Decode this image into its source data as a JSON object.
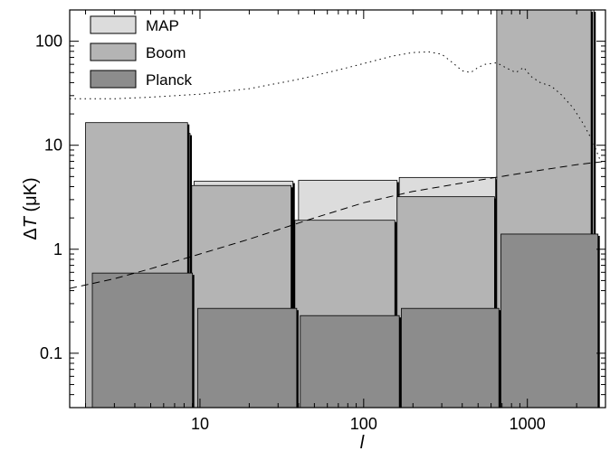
{
  "chart_data": {
    "type": "bar",
    "xscale": "log",
    "yscale": "log",
    "xlim": [
      1.6,
      3000
    ],
    "ylim": [
      0.03,
      200
    ],
    "xlabel": "l",
    "ylabel": "ΔT (μK)",
    "ylabel_parts": {
      "delta": "Δ",
      "var": "T",
      "unit": " (μK)"
    },
    "grid": false,
    "legend_position": "top-left",
    "x_ticks": [
      {
        "value": 10,
        "label": "10"
      },
      {
        "value": 100,
        "label": "100"
      },
      {
        "value": 1000,
        "label": "1000"
      }
    ],
    "y_ticks": [
      {
        "value": 0.1,
        "label": "0.1"
      },
      {
        "value": 1,
        "label": "1"
      },
      {
        "value": 10,
        "label": "10"
      },
      {
        "value": 100,
        "label": "100"
      }
    ],
    "band_edges_l": [
      2,
      9,
      38,
      160,
      650,
      2600
    ],
    "series": [
      {
        "name": "MAP",
        "color": "#dcdcdc",
        "bands": [
          {
            "l_min": 2.1,
            "l_max": 8.7,
            "value": 13
          },
          {
            "l_min": 9.2,
            "l_max": 37,
            "value": 4.5
          },
          {
            "l_min": 40,
            "l_max": 160,
            "value": 4.6
          },
          {
            "l_min": 165,
            "l_max": 640,
            "value": 4.9
          },
          {
            "l_min": 660,
            "l_max": 2550,
            "value": 200
          }
        ]
      },
      {
        "name": "Boom",
        "color": "#b4b4b4",
        "bands": [
          {
            "l_min": 2.0,
            "l_max": 8.4,
            "value": 16.5
          },
          {
            "l_min": 8.9,
            "l_max": 36,
            "value": 4.1
          },
          {
            "l_min": 38,
            "l_max": 155,
            "value": 1.9
          },
          {
            "l_min": 160,
            "l_max": 630,
            "value": 3.2
          },
          {
            "l_min": 650,
            "l_max": 2450,
            "value": 200
          }
        ]
      },
      {
        "name": "Planck",
        "color": "#8c8c8c",
        "bands": [
          {
            "l_min": 2.2,
            "l_max": 9.0,
            "value": 0.59
          },
          {
            "l_min": 9.7,
            "l_max": 39,
            "value": 0.27
          },
          {
            "l_min": 41,
            "l_max": 165,
            "value": 0.23
          },
          {
            "l_min": 170,
            "l_max": 670,
            "value": 0.27
          },
          {
            "l_min": 690,
            "l_max": 2700,
            "value": 1.4
          }
        ]
      }
    ],
    "curves": [
      {
        "style": "dotted",
        "points": [
          [
            1.6,
            28
          ],
          [
            3,
            28
          ],
          [
            5,
            29
          ],
          [
            10,
            31
          ],
          [
            20,
            35
          ],
          [
            40,
            43
          ],
          [
            70,
            53
          ],
          [
            100,
            61
          ],
          [
            150,
            72
          ],
          [
            200,
            78
          ],
          [
            250,
            79
          ],
          [
            300,
            75
          ],
          [
            350,
            62
          ],
          [
            400,
            52
          ],
          [
            450,
            50
          ],
          [
            500,
            56
          ],
          [
            550,
            60
          ],
          [
            650,
            62
          ],
          [
            750,
            55
          ],
          [
            850,
            50
          ],
          [
            950,
            56
          ],
          [
            1050,
            46
          ],
          [
            1200,
            40
          ],
          [
            1400,
            37
          ],
          [
            1600,
            31
          ],
          [
            1900,
            23
          ],
          [
            2200,
            16
          ],
          [
            2500,
            11
          ],
          [
            2800,
            7
          ]
        ]
      },
      {
        "style": "dashed",
        "points": [
          [
            1.6,
            0.42
          ],
          [
            3,
            0.52
          ],
          [
            5,
            0.65
          ],
          [
            10,
            0.9
          ],
          [
            20,
            1.25
          ],
          [
            50,
            2.0
          ],
          [
            100,
            2.8
          ],
          [
            200,
            3.6
          ],
          [
            500,
            4.6
          ],
          [
            1000,
            5.5
          ],
          [
            2000,
            6.5
          ],
          [
            3000,
            7.0
          ]
        ]
      }
    ]
  }
}
